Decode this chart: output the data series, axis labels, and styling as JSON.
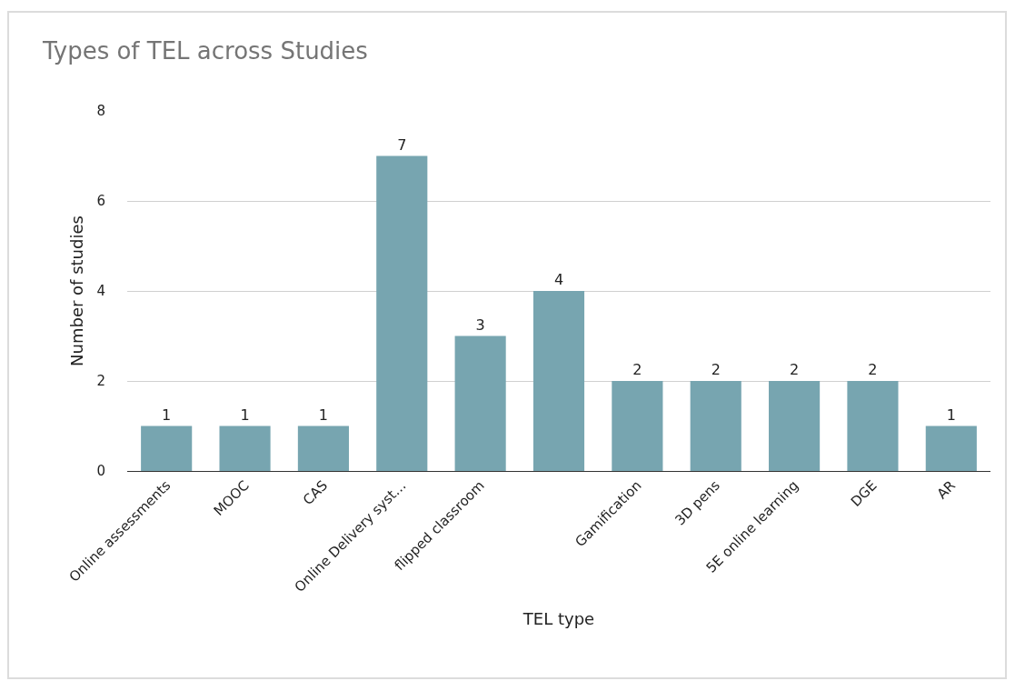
{
  "chart_data": {
    "type": "bar",
    "title": "Types of TEL across Studies",
    "xlabel": "TEL type",
    "ylabel": "Number of studies",
    "categories": [
      "Online assessments",
      "MOOC",
      "CAS",
      "Online Delivery syst…",
      "flipped classroom",
      null,
      "Gamification",
      "3D pens",
      "5E online learning",
      "DGE",
      "AR"
    ],
    "values": [
      1,
      1,
      1,
      7,
      3,
      4,
      2,
      2,
      2,
      2,
      1
    ],
    "color": "#77a5b0",
    "ylim": [
      0,
      8
    ],
    "yticks": [
      0,
      2,
      4,
      6,
      8
    ],
    "grid": "y",
    "data_labels": true,
    "legend": false
  }
}
